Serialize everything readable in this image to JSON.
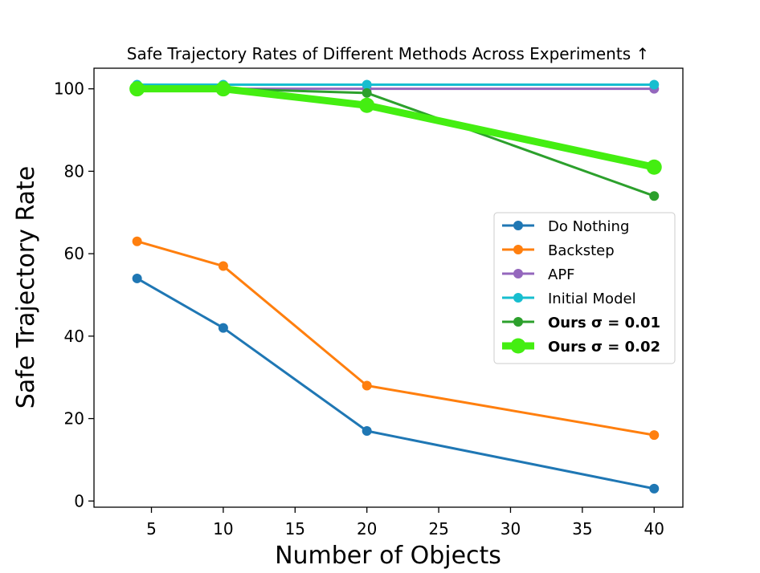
{
  "chart_data": {
    "type": "line",
    "title": "Safe Trajectory Rates of Different Methods Across Experiments ↑",
    "xlabel": "Number of Objects",
    "ylabel": "Safe Trajectory Rate",
    "x": [
      4,
      10,
      20,
      40
    ],
    "xlim": [
      1,
      42
    ],
    "ylim": [
      -1.5,
      105
    ],
    "xticks": [
      5,
      10,
      15,
      20,
      25,
      30,
      35,
      40
    ],
    "yticks": [
      0,
      20,
      40,
      60,
      80,
      100
    ],
    "grid": false,
    "legend_position": "center-right",
    "series": [
      {
        "name": "Do Nothing",
        "color": "#1f77b4",
        "values": [
          54,
          42,
          17,
          3
        ],
        "bold": false,
        "thick": false
      },
      {
        "name": "Backstep",
        "color": "#ff7f0e",
        "values": [
          63,
          57,
          28,
          16
        ],
        "bold": false,
        "thick": false
      },
      {
        "name": "APF",
        "color": "#9467bd",
        "values": [
          100,
          100,
          100,
          100
        ],
        "bold": false,
        "thick": false
      },
      {
        "name": "Initial Model",
        "color": "#17becf",
        "values": [
          101,
          101,
          101,
          101
        ],
        "bold": false,
        "thick": false
      },
      {
        "name": "Ours σ = 0.01",
        "color": "#2ca02c",
        "values": [
          100,
          100,
          99,
          74
        ],
        "bold": true,
        "thick": false
      },
      {
        "name": "Ours σ = 0.02",
        "color": "#44ee11",
        "values": [
          100,
          100,
          96,
          81
        ],
        "bold": true,
        "thick": true
      }
    ]
  }
}
